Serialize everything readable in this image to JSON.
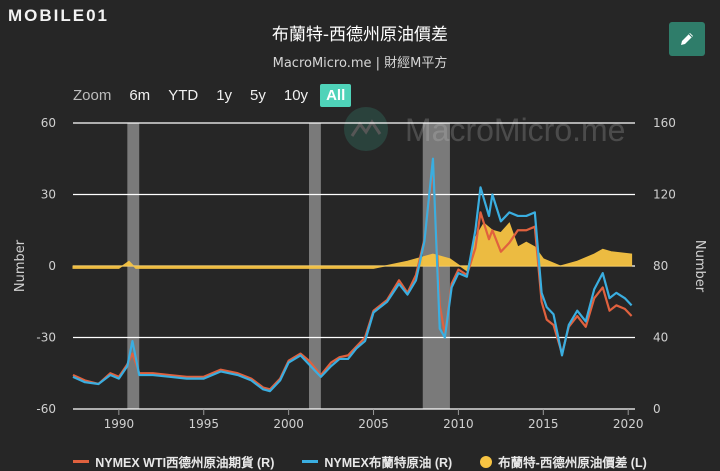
{
  "header": {
    "logo_text": "MOBILE01",
    "title": "布蘭特-西德州原油價差",
    "subtitle": "MacroMicro.me | 財經M平方",
    "watermark": "MacroMicro.me"
  },
  "toolbar": {
    "edit_icon": "pencil-icon",
    "zoom_label": "Zoom",
    "zoom_options": [
      "6m",
      "YTD",
      "1y",
      "5y",
      "10y",
      "All"
    ],
    "zoom_selected": "All"
  },
  "colors": {
    "wti": "#e0613e",
    "brent": "#3aaee0",
    "spread": "#f7c443",
    "recession": "#8a8a8a",
    "accent": "#4fd3b9"
  },
  "chart_data": {
    "type": "line",
    "title": "布蘭特-西德州原油價差",
    "subtitle": "MacroMicro.me | 財經M平方",
    "xlabel": "",
    "ylabel_left": "Number",
    "ylabel_right": "Number",
    "x_ticks": [
      "1990",
      "1995",
      "2000",
      "2005",
      "2010",
      "2015",
      "2020"
    ],
    "xlim": [
      1987.3,
      2020.4
    ],
    "ylim_left": [
      -60,
      60
    ],
    "ylim_right": [
      0,
      160
    ],
    "y_ticks_left": [
      "60",
      "30",
      "0",
      "-30",
      "-60"
    ],
    "y_ticks_right": [
      "160",
      "120",
      "80",
      "40",
      "0"
    ],
    "grid": true,
    "legend_position": "bottom-center",
    "recession_bands": [
      [
        1990.5,
        1991.2
      ],
      [
        2001.2,
        2001.9
      ],
      [
        2007.9,
        2009.5
      ]
    ],
    "series": [
      {
        "name": "NYMEX WTI西德州原油期貨 (R)",
        "axis": "right",
        "type": "line",
        "x": [
          1987.3,
          1988,
          1988.8,
          1989.5,
          1990,
          1990.5,
          1990.8,
          1991.2,
          1992,
          1993,
          1994,
          1995,
          1996,
          1997,
          1997.8,
          1998.5,
          1998.9,
          1999.5,
          2000,
          2000.7,
          2001.2,
          2001.9,
          2002.5,
          2003,
          2003.5,
          2004,
          2004.5,
          2005,
          2005.8,
          2006.5,
          2007,
          2007.5,
          2008,
          2008.5,
          2008.9,
          2009.2,
          2009.6,
          2010,
          2010.5,
          2011,
          2011.3,
          2011.8,
          2012,
          2012.5,
          2013,
          2013.5,
          2014,
          2014.5,
          2014.9,
          2015.2,
          2015.6,
          2016.1,
          2016.5,
          2017,
          2017.5,
          2018,
          2018.5,
          2018.9,
          2019.3,
          2019.8,
          2020.2
        ],
        "values": [
          19,
          16,
          14,
          20,
          18,
          25,
          31,
          20,
          20,
          19,
          18,
          18,
          22,
          20,
          17,
          12,
          11,
          17,
          27,
          31,
          27,
          19,
          26,
          29,
          30,
          35,
          40,
          55,
          61,
          72,
          65,
          75,
          95,
          135,
          58,
          42,
          70,
          78,
          75,
          90,
          110,
          95,
          100,
          88,
          93,
          100,
          100,
          102,
          60,
          50,
          47,
          31,
          46,
          52,
          46,
          62,
          68,
          55,
          58,
          56,
          52
        ]
      },
      {
        "name": "NYMEX布蘭特原油 (R)",
        "axis": "right",
        "type": "line",
        "x": [
          1987.3,
          1988,
          1988.8,
          1989.5,
          1990,
          1990.5,
          1990.8,
          1991.2,
          1992,
          1993,
          1994,
          1995,
          1996,
          1997,
          1997.8,
          1998.5,
          1998.9,
          1999.5,
          2000,
          2000.7,
          2001.2,
          2001.9,
          2002.5,
          2003,
          2003.5,
          2004,
          2004.5,
          2005,
          2005.8,
          2006.5,
          2007,
          2007.5,
          2008,
          2008.5,
          2008.9,
          2009.2,
          2009.6,
          2010,
          2010.5,
          2011,
          2011.3,
          2011.8,
          2012,
          2012.5,
          2013,
          2013.5,
          2014,
          2014.5,
          2014.9,
          2015.2,
          2015.6,
          2016.1,
          2016.5,
          2017,
          2017.5,
          2018,
          2018.5,
          2018.9,
          2019.3,
          2019.8,
          2020.2
        ],
        "values": [
          18,
          15,
          14,
          19,
          17,
          24,
          38,
          19,
          19,
          18,
          17,
          17,
          21,
          19,
          16,
          11,
          10,
          16,
          26,
          30,
          25,
          18,
          24,
          28,
          28,
          34,
          38,
          54,
          60,
          70,
          64,
          72,
          94,
          140,
          45,
          40,
          68,
          76,
          74,
          100,
          124,
          108,
          120,
          105,
          110,
          108,
          108,
          110,
          65,
          57,
          53,
          30,
          47,
          55,
          49,
          67,
          76,
          62,
          65,
          62,
          58
        ]
      },
      {
        "name": "布蘭特-西德州原油價差 (L)",
        "axis": "left",
        "type": "area",
        "x": [
          1987.3,
          1990,
          1990.6,
          1991,
          1995,
          2000,
          2003,
          2005,
          2007,
          2008.5,
          2009.5,
          2010.5,
          2011,
          2011.5,
          2012,
          2012.5,
          2013,
          2013.5,
          2014,
          2014.5,
          2015,
          2016,
          2017,
          2018,
          2018.5,
          2019,
          2020.2
        ],
        "values": [
          -1,
          -1,
          2,
          -1,
          -1,
          -1,
          -1,
          -1,
          2,
          5,
          3,
          -2,
          12,
          18,
          15,
          14,
          18,
          8,
          10,
          8,
          3,
          0,
          2,
          5,
          7,
          6,
          5
        ]
      }
    ]
  },
  "legend": [
    {
      "label": "NYMEX WTI西德州原油期貨 (R)",
      "symbol": "line",
      "color_key": "wti"
    },
    {
      "label": "NYMEX布蘭特原油 (R)",
      "symbol": "line",
      "color_key": "brent"
    },
    {
      "label": "布蘭特-西德州原油價差 (L)",
      "symbol": "dot",
      "color_key": "spread"
    }
  ]
}
